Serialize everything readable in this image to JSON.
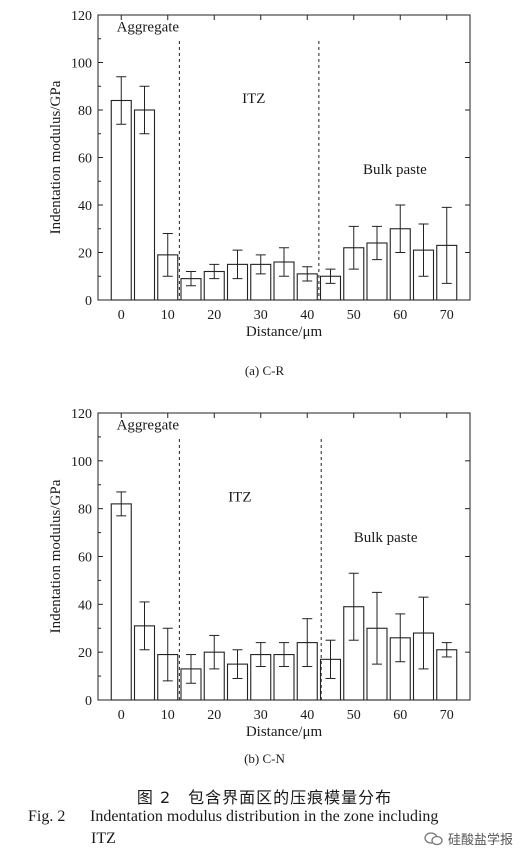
{
  "chart_data": [
    {
      "type": "bar",
      "panel": "(a) C-R",
      "ylabel": "Indentation modulus/GPa",
      "xlabel": "Distance/μm",
      "ylim": [
        0,
        120
      ],
      "xlim": [
        -5,
        75
      ],
      "yticks": [
        0,
        20,
        40,
        60,
        80,
        100,
        120
      ],
      "xticks": [
        0,
        10,
        20,
        30,
        40,
        50,
        60,
        70
      ],
      "bar_positions": [
        0,
        5,
        10,
        15,
        20,
        25,
        30,
        35,
        40,
        45,
        50,
        55,
        60,
        65,
        70
      ],
      "values": [
        84,
        80,
        19,
        9,
        12,
        15,
        15,
        16,
        11,
        10,
        22,
        24,
        30,
        21,
        23
      ],
      "errors": [
        10,
        10,
        9,
        3,
        3,
        6,
        4,
        6,
        3,
        3,
        9,
        7,
        10,
        11,
        16
      ],
      "dividers": [
        12.5,
        42.5
      ],
      "annotations": [
        {
          "text": "Aggregate",
          "x": -1,
          "y": 113
        },
        {
          "text": "ITZ",
          "x": 26,
          "y": 83
        },
        {
          "text": "Bulk paste",
          "x": 52,
          "y": 53
        }
      ],
      "grid": false
    },
    {
      "type": "bar",
      "panel": "(b) C-N",
      "ylabel": "Indentation modulus/GPa",
      "xlabel": "Distance/μm",
      "ylim": [
        0,
        120
      ],
      "xlim": [
        -5,
        75
      ],
      "yticks": [
        0,
        20,
        40,
        60,
        80,
        100,
        120
      ],
      "xticks": [
        0,
        10,
        20,
        30,
        40,
        50,
        60,
        70
      ],
      "bar_positions": [
        0,
        5,
        10,
        15,
        20,
        25,
        30,
        35,
        40,
        45,
        50,
        55,
        60,
        65,
        70
      ],
      "values": [
        82,
        31,
        19,
        13,
        20,
        15,
        19,
        19,
        24,
        17,
        39,
        30,
        26,
        28,
        21
      ],
      "errors": [
        5,
        10,
        11,
        6,
        7,
        6,
        5,
        5,
        10,
        8,
        14,
        15,
        10,
        15,
        3
      ],
      "dividers": [
        12.5,
        43
      ],
      "annotations": [
        {
          "text": "Aggregate",
          "x": -1,
          "y": 113
        },
        {
          "text": "ITZ",
          "x": 23,
          "y": 83
        },
        {
          "text": "Bulk paste",
          "x": 50,
          "y": 66
        }
      ],
      "grid": false
    }
  ],
  "captions": {
    "sub_a": "(a) C-R",
    "sub_b": "(b) C-N",
    "cn": "图 2　包含界面区的压痕模量分布",
    "fig_no": "Fig. 2",
    "en_line1": "Indentation modulus distribution in the zone including",
    "en_line2": "ITZ"
  },
  "watermark": {
    "text": "硅酸盐学报",
    "icon": "wechat-icon"
  }
}
